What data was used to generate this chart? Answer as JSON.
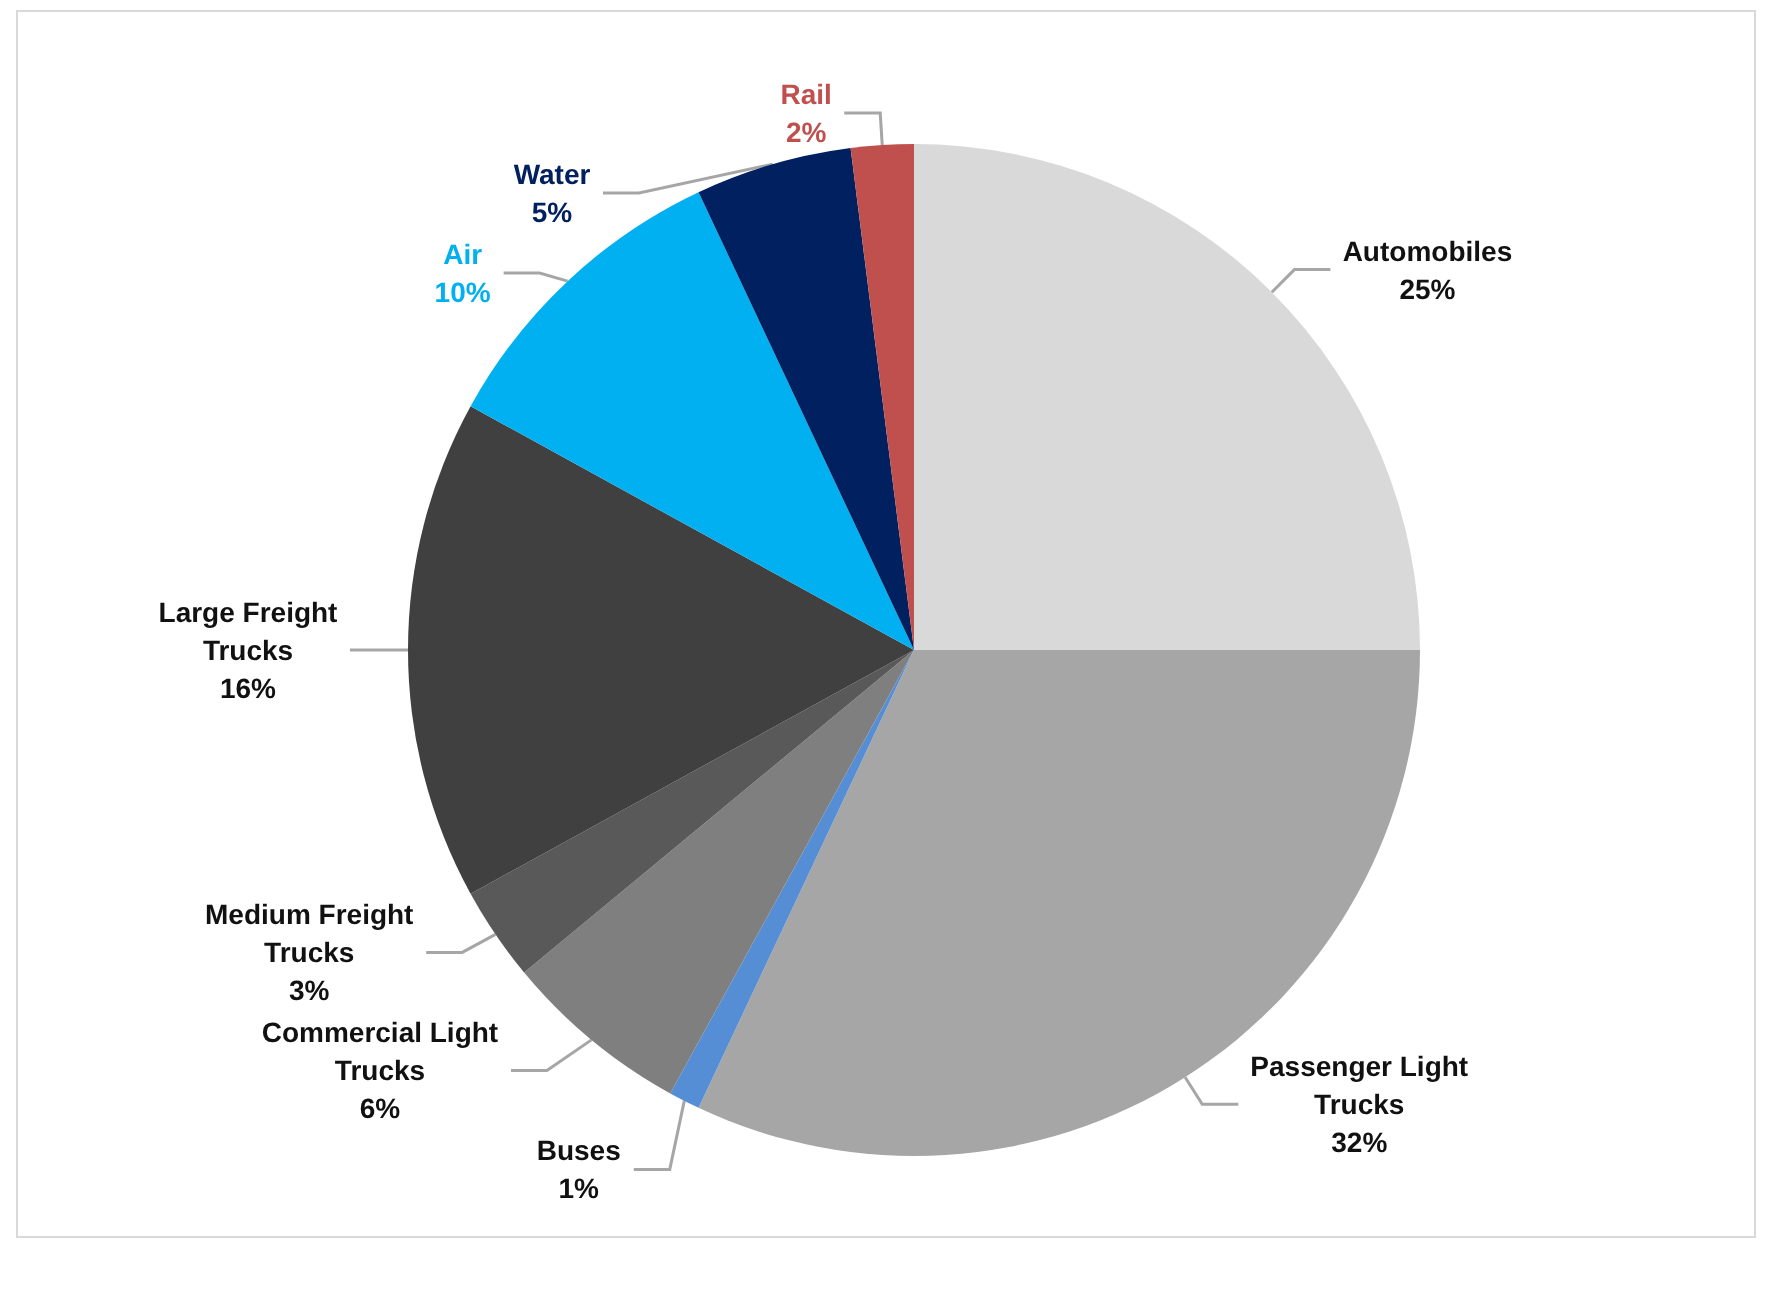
{
  "chart_data": {
    "type": "pie",
    "categories": [
      "Automobiles",
      "Passenger Light Trucks",
      "Buses",
      "Commercial Light Trucks",
      "Medium Freight Trucks",
      "Large Freight Trucks",
      "Air",
      "Water",
      "Rail"
    ],
    "values": [
      25,
      32,
      1,
      6,
      3,
      16,
      10,
      5,
      2
    ],
    "value_labels": [
      "25%",
      "32%",
      "1%",
      "6%",
      "3%",
      "16%",
      "10%",
      "5%",
      "2%"
    ],
    "colors": [
      "#d9d9d9",
      "#a6a6a6",
      "#558ed5",
      "#7f7f7f",
      "#595959",
      "#404040",
      "#00b0f0",
      "#002060",
      "#c0504d"
    ],
    "data_labels": false,
    "legend": false
  }
}
